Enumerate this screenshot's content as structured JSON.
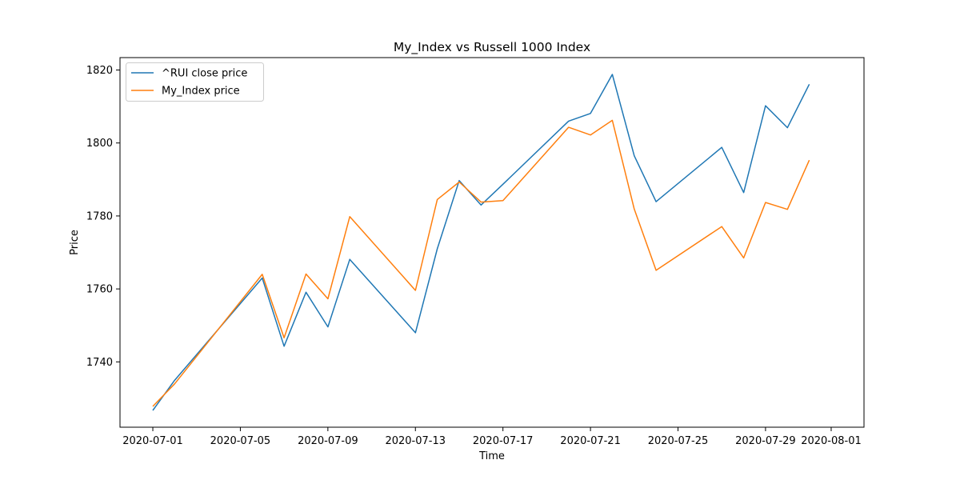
{
  "chart_data": {
    "type": "line",
    "title": "My_Index vs Russell 1000 Index",
    "xlabel": "Time",
    "ylabel": "Price",
    "x": [
      "2020-07-01",
      "2020-07-02",
      "2020-07-06",
      "2020-07-07",
      "2020-07-08",
      "2020-07-09",
      "2020-07-10",
      "2020-07-13",
      "2020-07-14",
      "2020-07-15",
      "2020-07-16",
      "2020-07-17",
      "2020-07-20",
      "2020-07-21",
      "2020-07-22",
      "2020-07-23",
      "2020-07-24",
      "2020-07-27",
      "2020-07-28",
      "2020-07-29",
      "2020-07-30",
      "2020-07-31"
    ],
    "series": [
      {
        "name": "^RUI close price",
        "color": "#1f77b4",
        "values": [
          1726.7,
          1735.0,
          1763.0,
          1744.3,
          1759.1,
          1749.6,
          1768.1,
          1748.0,
          1771.0,
          1789.7,
          1783.0,
          1788.7,
          1806.0,
          1808.1,
          1818.8,
          1796.5,
          1783.9,
          1798.8,
          1786.4,
          1810.2,
          1804.2,
          1816.1
        ]
      },
      {
        "name": "My_Index price",
        "color": "#ff7f0e",
        "values": [
          1727.8,
          1734.0,
          1764.0,
          1746.6,
          1764.1,
          1757.3,
          1779.8,
          1759.6,
          1784.5,
          1789.3,
          1783.8,
          1784.2,
          1804.3,
          1802.2,
          1806.2,
          1781.9,
          1765.1,
          1777.1,
          1768.5,
          1783.7,
          1781.8,
          1795.3
        ]
      }
    ],
    "x_ticks": [
      "2020-07-01",
      "2020-07-05",
      "2020-07-09",
      "2020-07-13",
      "2020-07-17",
      "2020-07-21",
      "2020-07-25",
      "2020-07-29",
      "2020-08-01"
    ],
    "xlim": [
      "2020-06-29T12:00",
      "2020-08-02T12:00"
    ],
    "y_ticks": [
      1740,
      1760,
      1780,
      1800,
      1820
    ],
    "ylim": [
      1722.1,
      1823.4
    ],
    "grid": false,
    "legend": "top-left"
  }
}
